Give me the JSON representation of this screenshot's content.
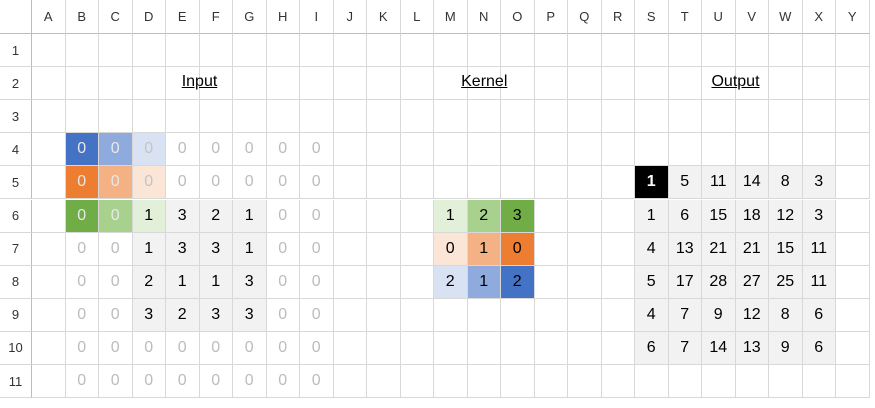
{
  "columns": [
    "A",
    "B",
    "C",
    "D",
    "E",
    "F",
    "G",
    "H",
    "I",
    "J",
    "K",
    "L",
    "M",
    "N",
    "O",
    "P",
    "Q",
    "R",
    "S",
    "T",
    "U",
    "V",
    "W",
    "X",
    "Y"
  ],
  "rows": [
    "1",
    "2",
    "3",
    "4",
    "5",
    "6",
    "7",
    "8",
    "9",
    "10",
    "11"
  ],
  "titles": {
    "input": "Input",
    "kernel": "Kernel",
    "output": "Output"
  },
  "input": [
    [
      "0",
      "0",
      "0",
      "0",
      "0",
      "0",
      "0",
      "0"
    ],
    [
      "0",
      "0",
      "0",
      "0",
      "0",
      "0",
      "0",
      "0"
    ],
    [
      "0",
      "0",
      "1",
      "3",
      "2",
      "1",
      "0",
      "0"
    ],
    [
      "0",
      "0",
      "1",
      "3",
      "3",
      "1",
      "0",
      "0"
    ],
    [
      "0",
      "0",
      "2",
      "1",
      "1",
      "3",
      "0",
      "0"
    ],
    [
      "0",
      "0",
      "3",
      "2",
      "3",
      "3",
      "0",
      "0"
    ],
    [
      "0",
      "0",
      "0",
      "0",
      "0",
      "0",
      "0",
      "0"
    ],
    [
      "0",
      "0",
      "0",
      "0",
      "0",
      "0",
      "0",
      "0"
    ]
  ],
  "kernel": [
    [
      "1",
      "2",
      "3"
    ],
    [
      "0",
      "1",
      "0"
    ],
    [
      "2",
      "1",
      "2"
    ]
  ],
  "output": [
    [
      "1",
      "5",
      "11",
      "14",
      "8",
      "3"
    ],
    [
      "1",
      "6",
      "15",
      "18",
      "12",
      "3"
    ],
    [
      "4",
      "13",
      "21",
      "21",
      "15",
      "11"
    ],
    [
      "5",
      "17",
      "28",
      "27",
      "25",
      "11"
    ],
    [
      "4",
      "7",
      "9",
      "12",
      "8",
      "6"
    ],
    [
      "6",
      "7",
      "14",
      "13",
      "9",
      "6"
    ]
  ],
  "colors": {
    "blue": [
      "#4472c4",
      "#8faadc",
      "#d9e2f3"
    ],
    "orange": [
      "#ed7d31",
      "#f4b183",
      "#fbe5d6"
    ],
    "green": [
      "#70ad47",
      "#a9d18e",
      "#e2f0d9"
    ],
    "gray_fill": "#f2f2f2",
    "highlight_bg": "#000000",
    "highlight_fg": "#ffffff",
    "zero_text": "#bcbcbc"
  }
}
